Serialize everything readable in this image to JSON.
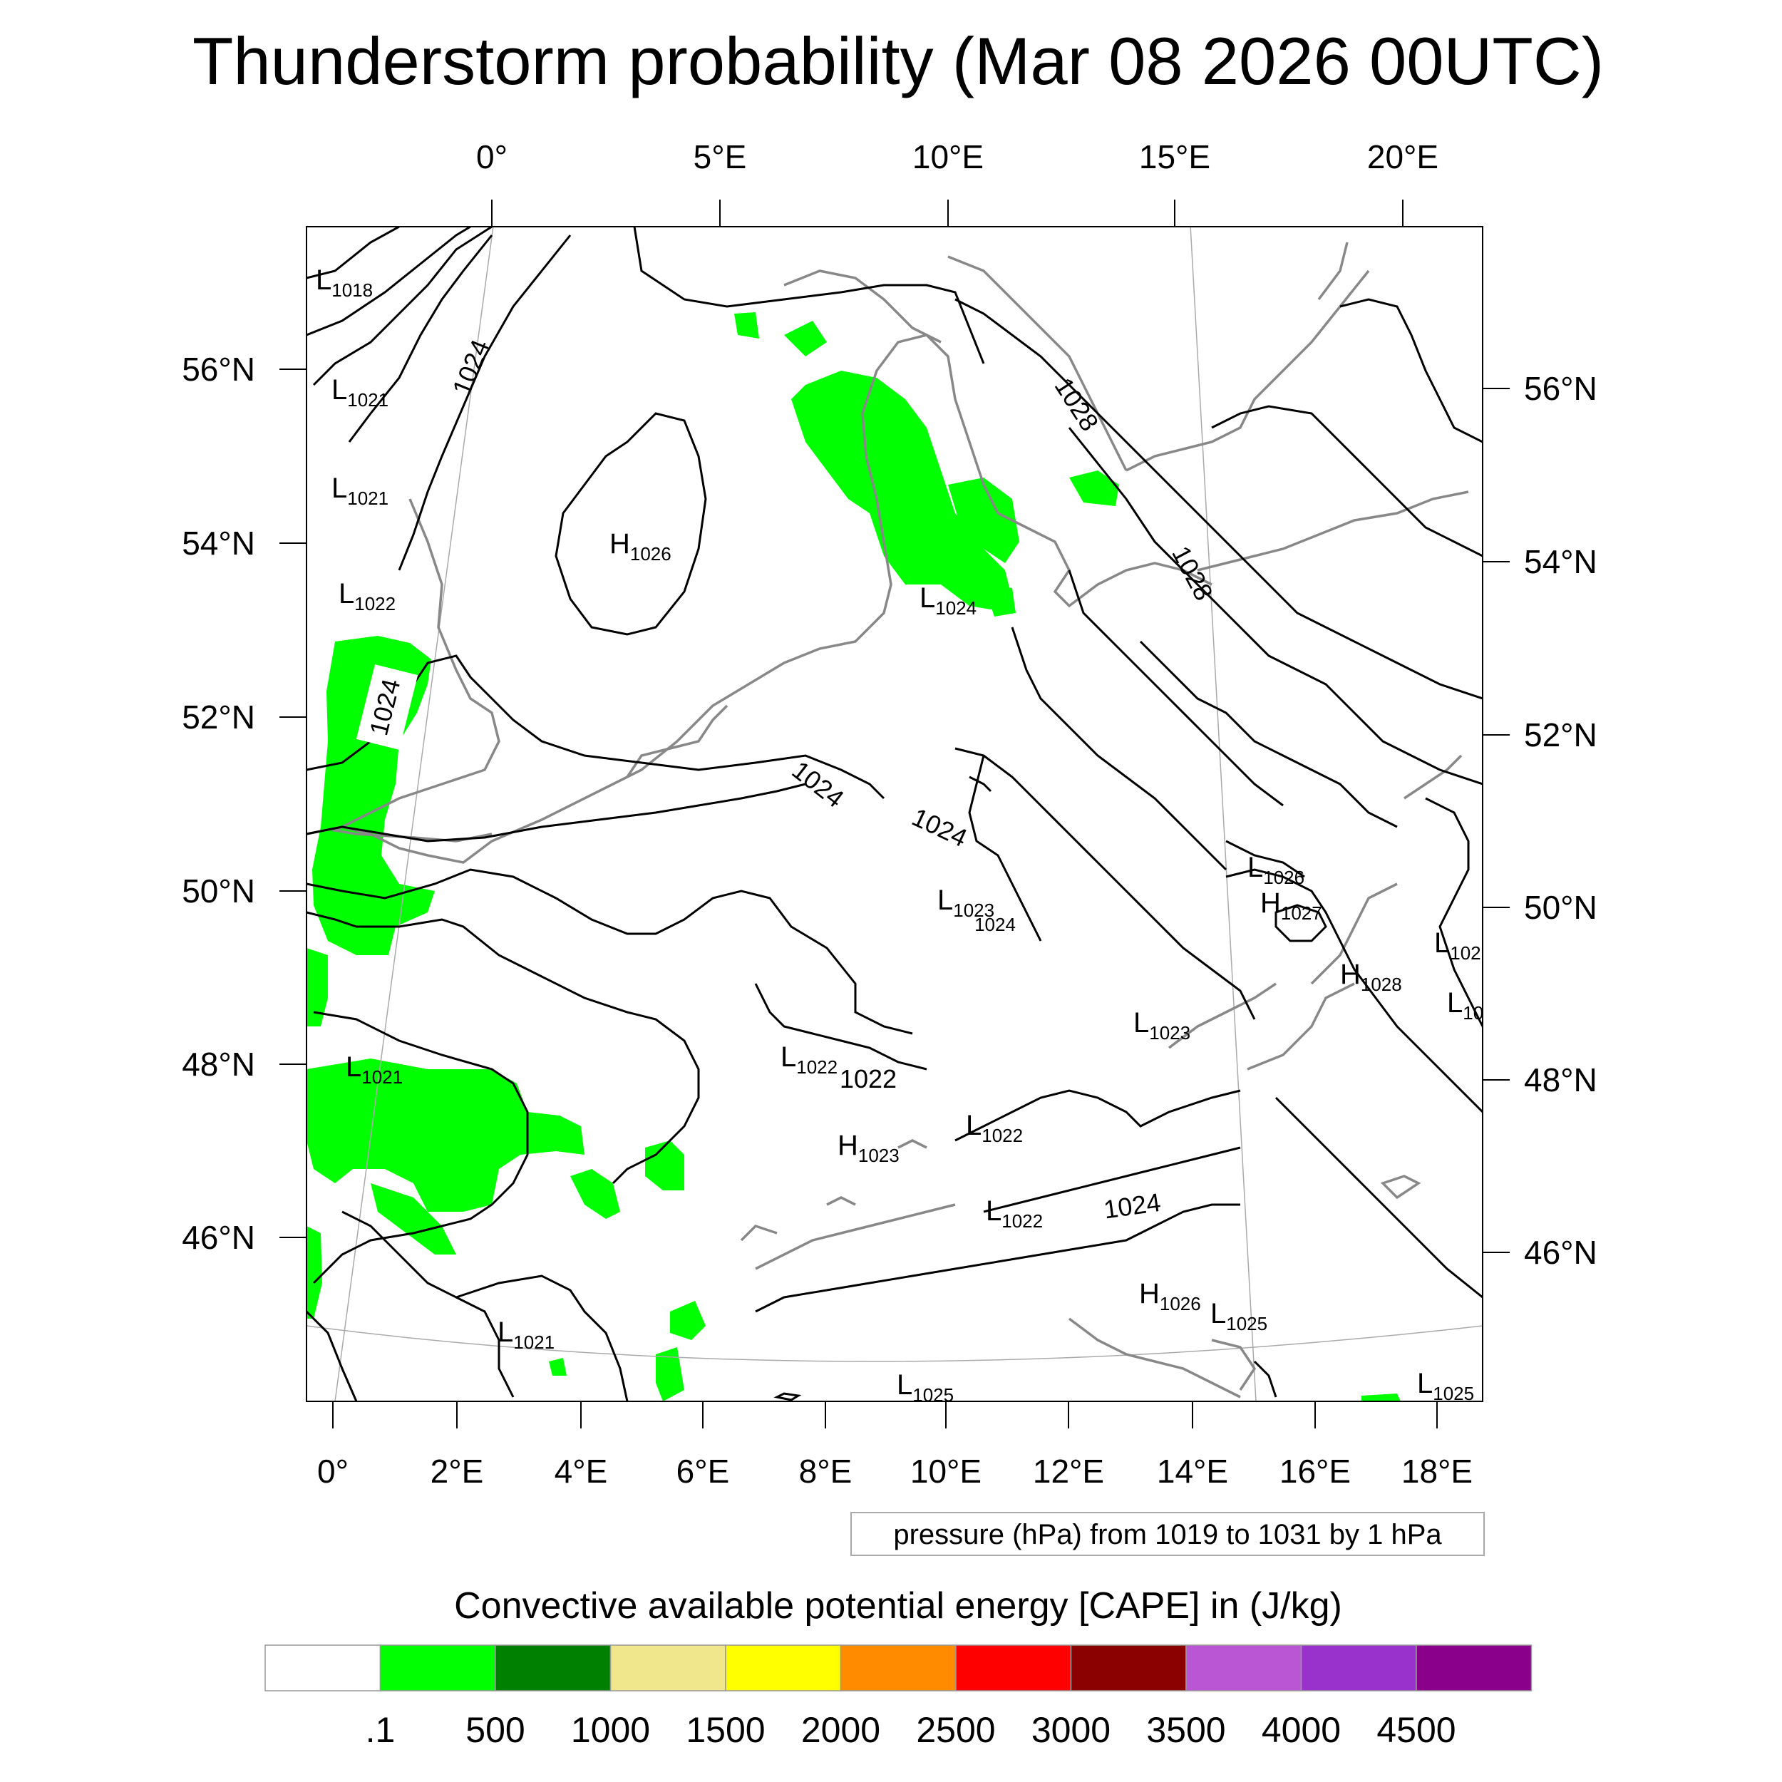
{
  "title": "Thunderstorm probability (Mar 08 2026 00UTC)",
  "colors": {
    "cape_fill": "#00ff00",
    "isobar": "#000000",
    "coastline": "#888888",
    "graticule": "#aaaaaa"
  },
  "axes": {
    "top_lon_labels": [
      "0°",
      "5°E",
      "10°E",
      "15°E",
      "20°E"
    ],
    "bottom_lon_labels": [
      "0°",
      "2°E",
      "4°E",
      "6°E",
      "8°E",
      "10°E",
      "12°E",
      "14°E",
      "16°E",
      "18°E"
    ],
    "left_lat_labels": [
      "56°N",
      "54°N",
      "52°N",
      "50°N",
      "48°N",
      "46°N"
    ],
    "right_lat_labels": [
      "56°N",
      "54°N",
      "52°N",
      "50°N",
      "48°N",
      "46°N"
    ]
  },
  "pressure_centers": [
    {
      "type": "L",
      "value": "1018"
    },
    {
      "type": "L",
      "value": "1021"
    },
    {
      "type": "L",
      "value": "1021"
    },
    {
      "type": "L",
      "value": "1022"
    },
    {
      "type": "H",
      "value": "1026"
    },
    {
      "type": "L",
      "value": "1024"
    },
    {
      "type": "L",
      "value": "1023"
    },
    {
      "type": "L",
      "value": "1026"
    },
    {
      "type": "H",
      "value": "1027"
    },
    {
      "type": "H",
      "value": "1028"
    },
    {
      "type": "L",
      "value": "1023"
    },
    {
      "type": "L",
      "value": "1021"
    },
    {
      "type": "L",
      "value": "1022"
    },
    {
      "type": "H",
      "value": "1023"
    },
    {
      "type": "L",
      "value": "1022"
    },
    {
      "type": "L",
      "value": "1022"
    },
    {
      "type": "H",
      "value": "1026"
    },
    {
      "type": "L",
      "value": "1025"
    },
    {
      "type": "L",
      "value": "1021"
    },
    {
      "type": "L",
      "value": "1025"
    },
    {
      "type": "L",
      "value": "1025"
    },
    {
      "type": "L",
      "value": "102"
    },
    {
      "type": "L",
      "value": "10"
    }
  ],
  "isobar_labels": [
    "1024",
    "1024",
    "1028",
    "1028",
    "1024",
    "1024",
    "1024",
    "1024",
    "1022"
  ],
  "small_labels": [
    "1024"
  ],
  "info_box": "pressure (hPa) from 1019 to 1031 by 1 hPa",
  "colorbar": {
    "title": "Convective available potential energy [CAPE] in (J/kg)",
    "colors": [
      "#ffffff",
      "#00ff00",
      "#008000",
      "#f0e68c",
      "#ffff00",
      "#ff8c00",
      "#ff0000",
      "#8b0000",
      "#ba55d3",
      "#9932cc",
      "#8b008b"
    ],
    "labels": [
      ".1",
      "500",
      "1000",
      "1500",
      "2000",
      "2500",
      "3000",
      "3500",
      "4000",
      "4500"
    ]
  }
}
